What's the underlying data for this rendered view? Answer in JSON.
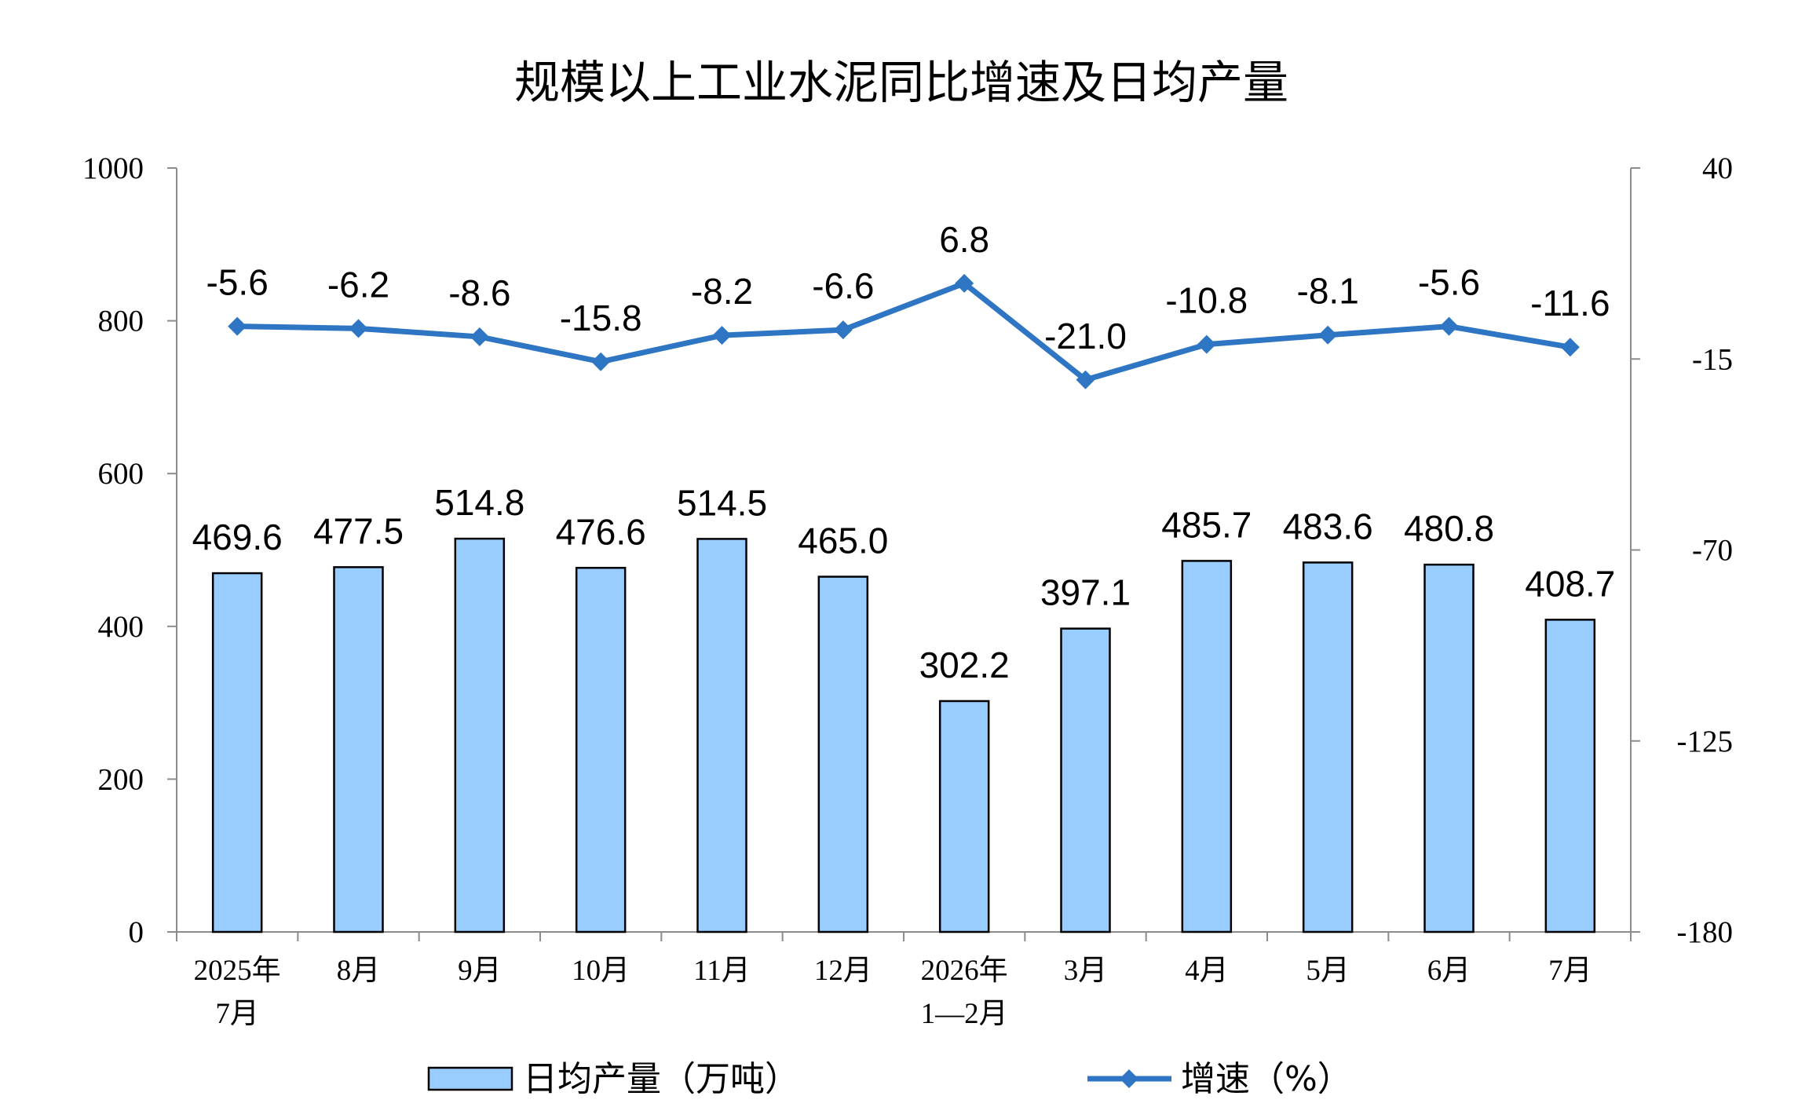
{
  "chart_data": {
    "type": "bar",
    "title": "规模以上工业水泥同比增速及日均产量",
    "categories": [
      [
        "2025年",
        "7月"
      ],
      [
        "8月"
      ],
      [
        "9月"
      ],
      [
        "10月"
      ],
      [
        "11月"
      ],
      [
        "12月"
      ],
      [
        "2026年",
        "1—2月"
      ],
      [
        "3月"
      ],
      [
        "4月"
      ],
      [
        "5月"
      ],
      [
        "6月"
      ],
      [
        "7月"
      ]
    ],
    "series": [
      {
        "name": "日均产量（万吨）",
        "type": "bar",
        "axis": "left",
        "color": "#99ccff",
        "values": [
          469.6,
          477.5,
          514.8,
          476.6,
          514.5,
          465.0,
          302.2,
          397.1,
          485.7,
          483.6,
          480.8,
          408.7
        ],
        "labels": [
          "469.6",
          "477.5",
          "514.8",
          "476.6",
          "514.5",
          "465.0",
          "302.2",
          "397.1",
          "485.7",
          "483.6",
          "480.8",
          "408.7"
        ]
      },
      {
        "name": "增速（%）",
        "type": "line",
        "axis": "right",
        "color": "#2e75c4",
        "values": [
          -5.6,
          -6.2,
          -8.6,
          -15.8,
          -8.2,
          -6.6,
          6.8,
          -21.0,
          -10.8,
          -8.1,
          -5.6,
          -11.6
        ],
        "labels": [
          "-5.6",
          "-6.2",
          "-8.6",
          "-15.8",
          "-8.2",
          "-6.6",
          "6.8",
          "-21.0",
          "-10.8",
          "-8.1",
          "-5.6",
          "-11.6"
        ]
      }
    ],
    "y_left": {
      "min": 0,
      "max": 1000,
      "ticks": [
        "0",
        "200",
        "400",
        "600",
        "800",
        "1000"
      ]
    },
    "y_right": {
      "min": -180,
      "max": 40,
      "ticks": [
        "-180",
        "-125",
        "-70",
        "-15",
        "40"
      ]
    },
    "legend_position": "bottom",
    "grid": false
  }
}
